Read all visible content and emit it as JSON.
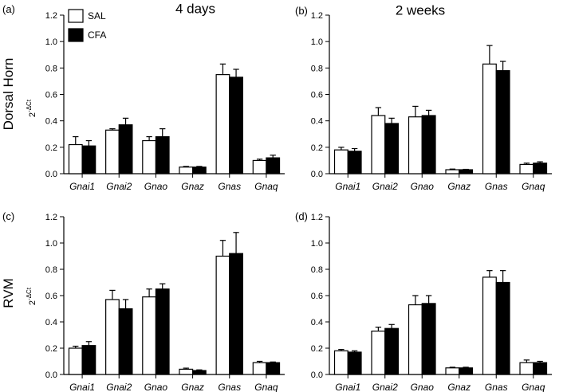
{
  "column_titles": [
    "4 days",
    "2 weeks"
  ],
  "row_titles": [
    "Dorsal Horn",
    "RVM"
  ],
  "legend": {
    "entries": [
      {
        "name": "SAL",
        "color": "#ffffff"
      },
      {
        "name": "CFA",
        "color": "#000000"
      }
    ]
  },
  "chart_data": [
    {
      "type": "bar",
      "panel": "(a)",
      "row": "Dorsal Horn",
      "column": "4 days",
      "ylabel": "2-ΔCt",
      "ylim": [
        0,
        1.2
      ],
      "yticks": [
        "0.0",
        "0.2",
        "0.4",
        "0.6",
        "0.8",
        "1.0",
        "1.2"
      ],
      "categories": [
        "Gnai1",
        "Gnai2",
        "Gnao",
        "Gnaz",
        "Gnas",
        "Gnaq"
      ],
      "series": [
        {
          "name": "SAL",
          "color": "#ffffff",
          "values": [
            0.22,
            0.33,
            0.25,
            0.05,
            0.75,
            0.1
          ],
          "errors": [
            0.06,
            0.01,
            0.03,
            0.005,
            0.08,
            0.01
          ]
        },
        {
          "name": "CFA",
          "color": "#000000",
          "values": [
            0.21,
            0.37,
            0.28,
            0.05,
            0.73,
            0.12
          ],
          "errors": [
            0.04,
            0.05,
            0.06,
            0.005,
            0.06,
            0.02
          ]
        }
      ]
    },
    {
      "type": "bar",
      "panel": "(b)",
      "row": "Dorsal Horn",
      "column": "2 weeks",
      "ylabel": "",
      "ylim": [
        0,
        1.2
      ],
      "yticks": [
        "0.0",
        "0.2",
        "0.4",
        "0.6",
        "0.8",
        "1.0",
        "1.2"
      ],
      "categories": [
        "Gnai1",
        "Gnai2",
        "Gnao",
        "Gnaz",
        "Gnas",
        "Gnaq"
      ],
      "series": [
        {
          "name": "SAL",
          "color": "#ffffff",
          "values": [
            0.18,
            0.44,
            0.43,
            0.03,
            0.83,
            0.07
          ],
          "errors": [
            0.02,
            0.06,
            0.08,
            0.005,
            0.14,
            0.01
          ]
        },
        {
          "name": "CFA",
          "color": "#000000",
          "values": [
            0.17,
            0.38,
            0.44,
            0.03,
            0.78,
            0.08
          ],
          "errors": [
            0.02,
            0.04,
            0.04,
            0.003,
            0.07,
            0.01
          ]
        }
      ]
    },
    {
      "type": "bar",
      "panel": "(c)",
      "row": "RVM",
      "column": "4 days",
      "ylabel": "2-ΔCt",
      "ylim": [
        0,
        1.2
      ],
      "yticks": [
        "0.0",
        "0.2",
        "0.4",
        "0.6",
        "0.8",
        "1.0",
        "1.2"
      ],
      "categories": [
        "Gnai1",
        "Gnai2",
        "Gnao",
        "Gnaz",
        "Gnas",
        "Gnaq"
      ],
      "series": [
        {
          "name": "SAL",
          "color": "#ffffff",
          "values": [
            0.2,
            0.57,
            0.59,
            0.04,
            0.9,
            0.09
          ],
          "errors": [
            0.015,
            0.07,
            0.06,
            0.008,
            0.12,
            0.01
          ]
        },
        {
          "name": "CFA",
          "color": "#000000",
          "values": [
            0.22,
            0.5,
            0.65,
            0.03,
            0.92,
            0.09
          ],
          "errors": [
            0.03,
            0.07,
            0.04,
            0.005,
            0.16,
            0.005
          ]
        }
      ]
    },
    {
      "type": "bar",
      "panel": "(d)",
      "row": "RVM",
      "column": "2 weeks",
      "ylabel": "",
      "ylim": [
        0,
        1.2
      ],
      "yticks": [
        "0.0",
        "0.2",
        "0.4",
        "0.6",
        "0.8",
        "1.0",
        "1.2"
      ],
      "categories": [
        "Gnai1",
        "Gnai2",
        "Gnao",
        "Gnaz",
        "Gnas",
        "Gnaq"
      ],
      "series": [
        {
          "name": "SAL",
          "color": "#ffffff",
          "values": [
            0.18,
            0.33,
            0.53,
            0.05,
            0.74,
            0.09
          ],
          "errors": [
            0.01,
            0.03,
            0.07,
            0.005,
            0.05,
            0.02
          ]
        },
        {
          "name": "CFA",
          "color": "#000000",
          "values": [
            0.17,
            0.35,
            0.54,
            0.05,
            0.7,
            0.09
          ],
          "errors": [
            0.01,
            0.03,
            0.06,
            0.005,
            0.09,
            0.01
          ]
        }
      ]
    }
  ]
}
